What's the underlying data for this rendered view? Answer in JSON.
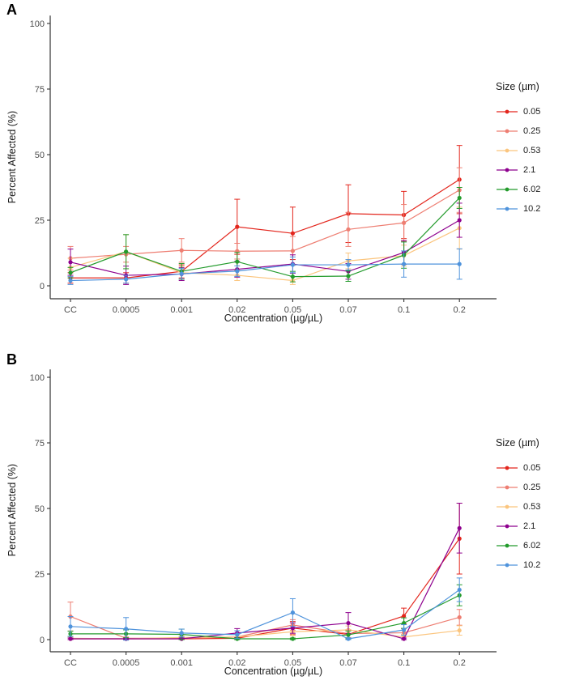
{
  "figure": {
    "y_axis_label": "Percent Affected (%)",
    "x_axis_label": "Concentration (µg/µL)",
    "legend_title": "Size (µm)",
    "x_categories": [
      "CC",
      "0.0005",
      "0.001",
      "0.02",
      "0.05",
      "0.07",
      "0.1",
      "0.2"
    ],
    "y_ticks": [
      0,
      25,
      50,
      75,
      100
    ],
    "colors": {
      "axis": "#333333",
      "tick_text": "#4D4D4D"
    }
  },
  "chart_data": [
    {
      "type": "line",
      "panel": "A",
      "xlabel": "Concentration (µg/µL)",
      "ylabel": "Percent Affected (%)",
      "legend_title": "Size (µm)",
      "legend_position": "right",
      "grid": false,
      "error_bars": true,
      "ylim": [
        0,
        100
      ],
      "y_ticks": [
        0,
        25,
        50,
        75,
        100
      ],
      "x_categories": [
        "CC",
        "0.0005",
        "0.001",
        "0.02",
        "0.05",
        "0.07",
        "0.1",
        "0.2"
      ],
      "series": [
        {
          "name": "0.05",
          "color": "#E3261D",
          "values": [
            3,
            3,
            5.5,
            22.5,
            20,
            27.5,
            27,
            40.5
          ],
          "errors": [
            2,
            2,
            2.5,
            10.5,
            10,
            11,
            9,
            13
          ]
        },
        {
          "name": "0.25",
          "color": "#EE7E72",
          "values": [
            10.5,
            12,
            13.5,
            13.2,
            13.3,
            21.5,
            24,
            36.5
          ],
          "errors": [
            4.5,
            3,
            4.5,
            3,
            5.5,
            6.5,
            7,
            8.5
          ]
        },
        {
          "name": "0.53",
          "color": "#FBC57E",
          "values": [
            7,
            13,
            5,
            4,
            2,
            9.5,
            11.5,
            22
          ],
          "errors": [
            3.5,
            6.5,
            2.5,
            2,
            1.5,
            3,
            4,
            8
          ]
        },
        {
          "name": "2.1",
          "color": "#8E008E",
          "values": [
            9,
            4,
            4.5,
            6.3,
            8.3,
            5.5,
            12.7,
            25
          ],
          "errors": [
            5,
            3.5,
            2.5,
            3,
            3.5,
            3,
            4.5,
            6.5
          ]
        },
        {
          "name": "6.02",
          "color": "#239B2C",
          "values": [
            5,
            13,
            5.5,
            9.2,
            3.5,
            3.7,
            11.7,
            33.5
          ],
          "errors": [
            2,
            6.5,
            3,
            3.5,
            2,
            2,
            5,
            4
          ]
        },
        {
          "name": "10.2",
          "color": "#4F93DC",
          "values": [
            2,
            2.5,
            4.6,
            5.6,
            8,
            8,
            8.3,
            8.3
          ],
          "errors": [
            1.5,
            1.5,
            2,
            2,
            3,
            2,
            5,
            5.8
          ]
        }
      ]
    },
    {
      "type": "line",
      "panel": "B",
      "xlabel": "Concentration (µg/µL)",
      "ylabel": "Percent Affected (%)",
      "legend_title": "Size (µm)",
      "legend_position": "right",
      "grid": false,
      "error_bars": true,
      "ylim": [
        0,
        100
      ],
      "y_ticks": [
        0,
        25,
        50,
        75,
        100
      ],
      "x_categories": [
        "CC",
        "0.0005",
        "0.001",
        "0.02",
        "0.05",
        "0.07",
        "0.1",
        "0.2"
      ],
      "series": [
        {
          "name": "0.05",
          "color": "#E3261D",
          "values": [
            0.3,
            0.3,
            0.3,
            0.5,
            4.4,
            2,
            9,
            38.5
          ],
          "errors": [
            0.3,
            0.3,
            0.3,
            0.5,
            2.5,
            1.5,
            3,
            13.5
          ]
        },
        {
          "name": "0.25",
          "color": "#EE7E72",
          "values": [
            8.8,
            0.5,
            0.5,
            1,
            5.6,
            2.3,
            2.6,
            8.5
          ],
          "errors": [
            5.5,
            0.5,
            0.5,
            1,
            2,
            1.5,
            1.5,
            3
          ]
        },
        {
          "name": "0.53",
          "color": "#FBC57E",
          "values": [
            0.5,
            0.3,
            0.8,
            1,
            3,
            3.7,
            1,
            3.5
          ],
          "errors": [
            0.5,
            0.3,
            0.8,
            1,
            1.5,
            1.5,
            1,
            1.8
          ]
        },
        {
          "name": "2.1",
          "color": "#8E008E",
          "values": [
            0.3,
            0.3,
            0.3,
            2.5,
            4.4,
            6.3,
            0.3,
            42.5
          ],
          "errors": [
            0.3,
            0.3,
            0.3,
            1.7,
            2,
            4,
            0.3,
            9.5
          ]
        },
        {
          "name": "6.02",
          "color": "#239B2C",
          "values": [
            2.2,
            2.2,
            2,
            0.3,
            0.3,
            1.8,
            6.3,
            16.9
          ],
          "errors": [
            1,
            1.5,
            2,
            0.3,
            0.3,
            1.5,
            2,
            4
          ]
        },
        {
          "name": "10.2",
          "color": "#4F93DC",
          "values": [
            5,
            4.1,
            2.5,
            1.9,
            10.3,
            0.3,
            3.7,
            19
          ],
          "errors": [
            3.8,
            4.3,
            1.5,
            1.5,
            5.3,
            0.3,
            2,
            4.5
          ]
        }
      ]
    }
  ]
}
